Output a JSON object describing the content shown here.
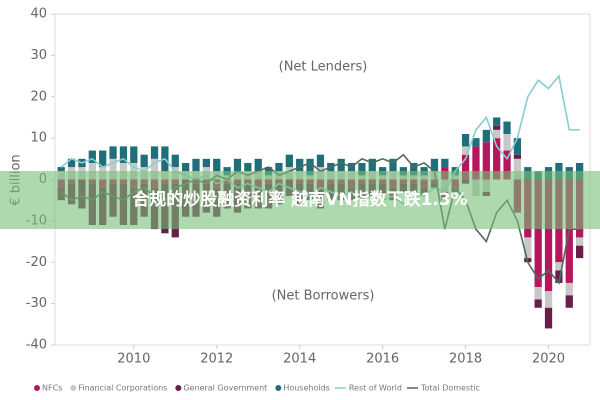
{
  "chart_data": {
    "type": "bar-line",
    "y_label": "€ billion",
    "annotations": [
      "(Net Lenders)",
      "(Net Borrowers)"
    ],
    "x": [
      2008.25,
      2008.5,
      2008.75,
      2009,
      2009.25,
      2009.5,
      2009.75,
      2010,
      2010.25,
      2010.5,
      2010.75,
      2011,
      2011.25,
      2011.5,
      2011.75,
      2012,
      2012.25,
      2012.5,
      2012.75,
      2013,
      2013.25,
      2013.5,
      2013.75,
      2014,
      2014.25,
      2014.5,
      2014.75,
      2015,
      2015.25,
      2015.5,
      2015.75,
      2016,
      2016.25,
      2016.5,
      2016.75,
      2017,
      2017.25,
      2017.5,
      2017.75,
      2018,
      2018.25,
      2018.5,
      2018.75,
      2019,
      2019.25,
      2019.5,
      2019.75,
      2020,
      2020.25,
      2020.5,
      2020.75
    ],
    "xlim": [
      2008.1,
      2021.0
    ],
    "xticks": [
      2010,
      2012,
      2014,
      2016,
      2018,
      2020
    ],
    "ylim": [
      -40,
      40
    ],
    "yticks": [
      40,
      30,
      20,
      10,
      0,
      -10,
      -20,
      -30,
      -40
    ],
    "series": [
      {
        "name": "NFCs",
        "kind": "bar",
        "color": "#b5175f",
        "values": [
          -2,
          -1,
          0,
          -1,
          -2,
          -1,
          -1,
          -2,
          -1,
          -2,
          -1,
          -1,
          0,
          -1,
          -1,
          -2,
          -1,
          -1,
          -1,
          -2,
          -1,
          -1,
          0,
          -1,
          -1,
          -2,
          -1,
          -1,
          -2,
          -1,
          -1,
          -1,
          -2,
          -1,
          -1,
          -2,
          -1,
          3,
          -2,
          6,
          8,
          9,
          10,
          7,
          -8,
          -14,
          -26,
          -27,
          -20,
          -25,
          -14
        ]
      },
      {
        "name": "Financial Corporations",
        "kind": "bar",
        "color": "#c8c8c8",
        "values": [
          2,
          3,
          3,
          4,
          3,
          5,
          4,
          4,
          3,
          5,
          2,
          3,
          2,
          2,
          3,
          2,
          1,
          2,
          2,
          2,
          1,
          2,
          3,
          2,
          1,
          3,
          2,
          2,
          2,
          1,
          2,
          1,
          2,
          1,
          1,
          1,
          2,
          -3,
          1,
          2,
          -4,
          -3,
          2,
          4,
          5,
          -5,
          -3,
          -4,
          -2,
          -3,
          -2
        ]
      },
      {
        "name": "General Government",
        "kind": "bar",
        "color": "#6b1e4c",
        "values": [
          -3,
          -5,
          -7,
          -10,
          -9,
          -8,
          -10,
          -9,
          -8,
          -10,
          -12,
          -13,
          -9,
          -8,
          -7,
          -7,
          -6,
          -7,
          -6,
          -5,
          -6,
          -5,
          -4,
          -5,
          -4,
          -5,
          -4,
          -4,
          -3,
          -4,
          -3,
          -3,
          -3,
          -2,
          -2,
          -2,
          -1,
          -2,
          -1,
          -1,
          0,
          -1,
          1,
          0,
          1,
          -1,
          -2,
          -5,
          -3,
          -3,
          -3
        ]
      },
      {
        "name": "Households",
        "kind": "bar",
        "color": "#1f6e7a",
        "values": [
          1,
          2,
          2,
          3,
          4,
          3,
          4,
          4,
          3,
          3,
          6,
          3,
          2,
          3,
          2,
          3,
          2,
          3,
          2,
          3,
          2,
          2,
          3,
          3,
          4,
          3,
          2,
          3,
          2,
          3,
          3,
          2,
          3,
          2,
          3,
          2,
          3,
          2,
          2,
          3,
          2,
          3,
          2,
          3,
          4,
          3,
          2,
          3,
          4,
          3,
          4
        ]
      },
      {
        "name": "Rest of World",
        "kind": "line",
        "color": "#86cfcf",
        "values": [
          3,
          5,
          4,
          5,
          3,
          4,
          5,
          3,
          2,
          4,
          5,
          2,
          1,
          0,
          1,
          -1,
          0,
          -2,
          -1,
          -2,
          -3,
          -1,
          -2,
          -3,
          -4,
          -2,
          -3,
          -4,
          -3,
          -5,
          -4,
          -5,
          -4,
          -6,
          -3,
          -4,
          -2,
          -3,
          2,
          5,
          12,
          15,
          8,
          5,
          10,
          20,
          24,
          22,
          25,
          12,
          12
        ]
      },
      {
        "name": "Total Domestic",
        "kind": "line",
        "color": "#4d6b5c",
        "values": [
          -3,
          -5,
          -4,
          -5,
          -3,
          -4,
          -5,
          -3,
          -2,
          -4,
          -5,
          -2,
          -1,
          0,
          -1,
          1,
          0,
          2,
          1,
          2,
          3,
          1,
          2,
          3,
          4,
          2,
          3,
          4,
          3,
          5,
          4,
          5,
          4,
          6,
          3,
          4,
          2,
          -12,
          -2,
          -5,
          -12,
          -15,
          -8,
          -5,
          -10,
          -20,
          -24,
          -22,
          -25,
          -12,
          -12
        ]
      }
    ]
  },
  "overlay_text": "合规的炒股融资利率 越南VN指数下跌1.3%"
}
